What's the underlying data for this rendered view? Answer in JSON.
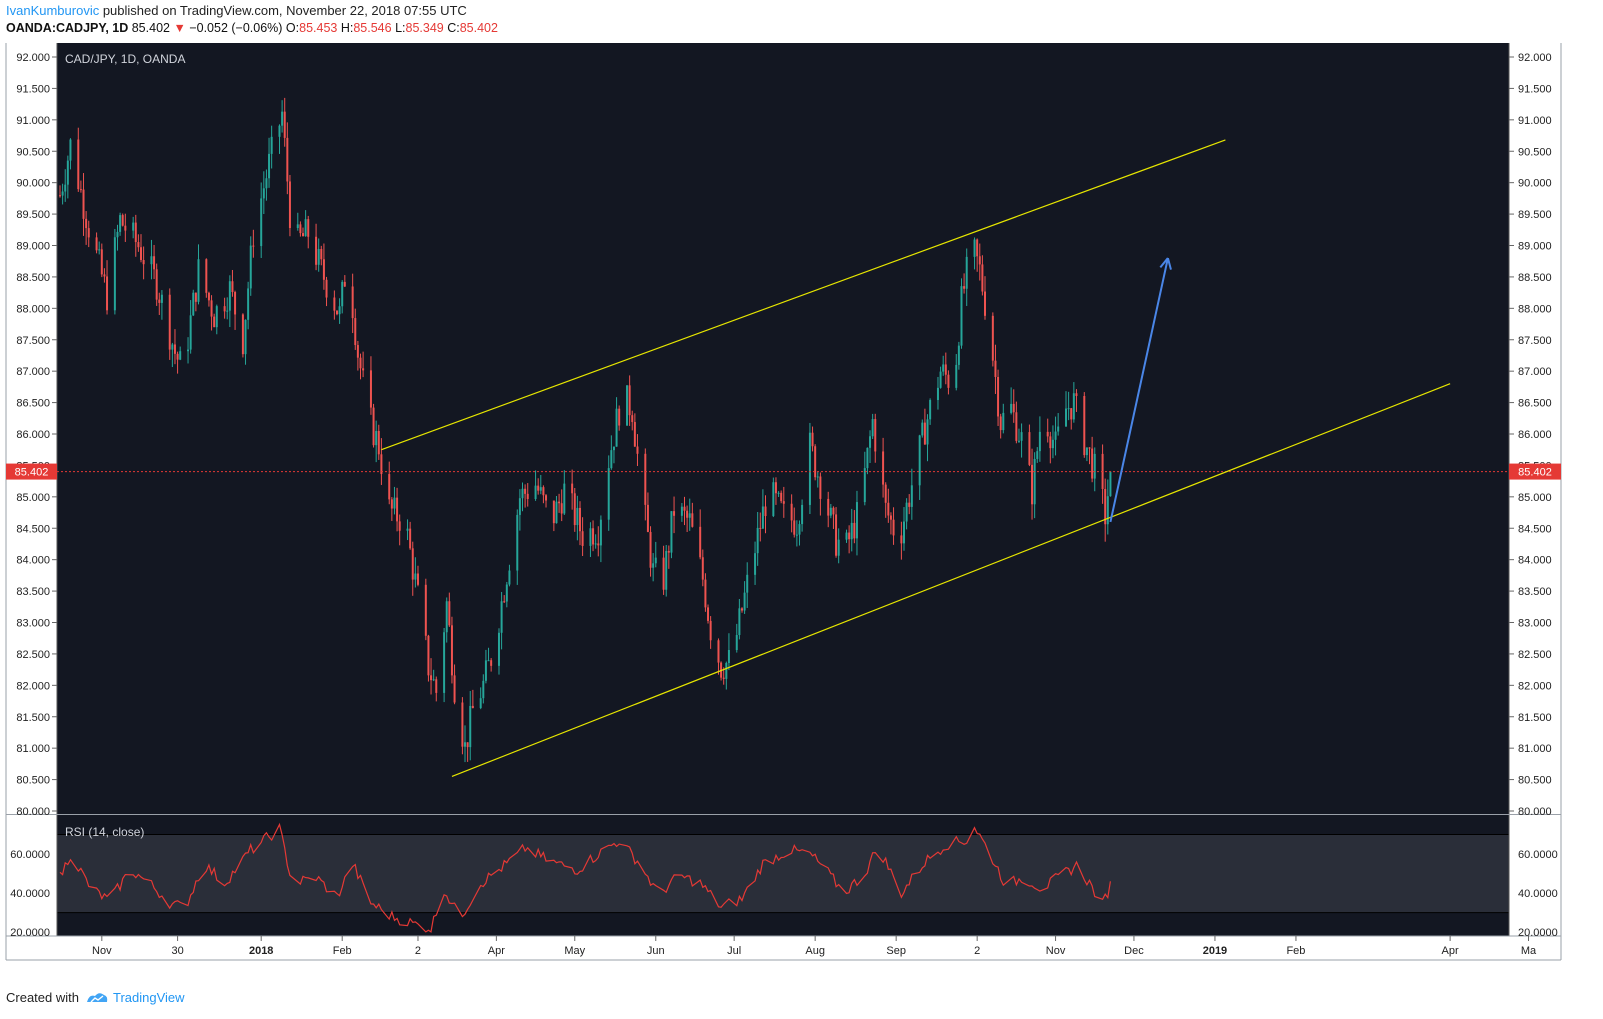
{
  "header": {
    "author": "IvanKumburovic",
    "published": " published on TradingView.com, November 22, 2018 07:55 UTC",
    "symbol": "OANDA:CADJPY, 1D",
    "last": "85.402",
    "change_arrow": "▼",
    "change": "−0.052 (−0.06%)",
    "o_label": "O:",
    "o": "85.453",
    "h_label": "H:",
    "h": "85.546",
    "l_label": "L:",
    "l": "85.349",
    "c_label": "C:",
    "c": "85.402"
  },
  "footer": {
    "created_with": "Created with",
    "brand": "TradingView"
  },
  "colors": {
    "background": "#131722",
    "up": "#26a69a",
    "down": "#ef5350",
    "channel": "#e6e600",
    "arrow": "#4a86e8",
    "rsi_line": "#e53935",
    "rsi_band": "#2a2e39",
    "price_line": "#e53935"
  },
  "chart_data": [
    {
      "type": "candlestick",
      "title": "CAD/JPY, 1D, OANDA",
      "y_ticks": [
        "92.000",
        "91.500",
        "91.000",
        "90.500",
        "90.000",
        "89.500",
        "89.000",
        "88.500",
        "88.000",
        "87.500",
        "87.000",
        "86.500",
        "86.000",
        "85.500",
        "85.000",
        "84.500",
        "84.000",
        "83.500",
        "83.000",
        "82.500",
        "82.000",
        "81.500",
        "81.000",
        "80.500",
        "80.000"
      ],
      "ylim": [
        80.0,
        92.0
      ],
      "x_ticks": [
        {
          "label": "Nov",
          "date": "2017-11-01",
          "bold": false
        },
        {
          "label": "30",
          "date": "2017-11-30",
          "bold": false
        },
        {
          "label": "2018",
          "date": "2018-01-01",
          "bold": true
        },
        {
          "label": "Feb",
          "date": "2018-02-01",
          "bold": false
        },
        {
          "label": "2",
          "date": "2018-03-02",
          "bold": false
        },
        {
          "label": "Apr",
          "date": "2018-04-01",
          "bold": false
        },
        {
          "label": "May",
          "date": "2018-05-01",
          "bold": false
        },
        {
          "label": "Jun",
          "date": "2018-06-01",
          "bold": false
        },
        {
          "label": "Jul",
          "date": "2018-07-01",
          "bold": false
        },
        {
          "label": "Aug",
          "date": "2018-08-01",
          "bold": false
        },
        {
          "label": "Sep",
          "date": "2018-09-01",
          "bold": false
        },
        {
          "label": "2",
          "date": "2018-10-02",
          "bold": false
        },
        {
          "label": "Nov",
          "date": "2018-11-01",
          "bold": false
        },
        {
          "label": "Dec",
          "date": "2018-12-01",
          "bold": false
        },
        {
          "label": "2019",
          "date": "2019-01-01",
          "bold": true
        },
        {
          "label": "Feb",
          "date": "2019-02-01",
          "bold": false
        },
        {
          "label": "Apr",
          "date": "2019-04-01",
          "bold": false
        },
        {
          "label": "Ma",
          "date": "2019-05-01",
          "bold": false
        }
      ],
      "current_price": 85.402,
      "current_price_label": "85.402",
      "anchors": [
        {
          "date": "2017-10-16",
          "close": 89.8
        },
        {
          "date": "2017-10-20",
          "close": 90.6
        },
        {
          "date": "2017-10-27",
          "close": 89.3
        },
        {
          "date": "2017-11-03",
          "close": 88.2
        },
        {
          "date": "2017-11-08",
          "close": 89.4
        },
        {
          "date": "2017-11-15",
          "close": 89.0
        },
        {
          "date": "2017-11-22",
          "close": 88.4
        },
        {
          "date": "2017-11-29",
          "close": 87.3
        },
        {
          "date": "2017-12-02",
          "close": 87.0
        },
        {
          "date": "2017-12-08",
          "close": 88.6
        },
        {
          "date": "2017-12-14",
          "close": 87.9
        },
        {
          "date": "2017-12-20",
          "close": 88.3
        },
        {
          "date": "2017-12-25",
          "close": 87.5
        },
        {
          "date": "2017-12-29",
          "close": 89.2
        },
        {
          "date": "2018-01-04",
          "close": 90.3
        },
        {
          "date": "2018-01-09",
          "close": 91.1
        },
        {
          "date": "2018-01-13",
          "close": 89.0
        },
        {
          "date": "2018-01-19",
          "close": 89.2
        },
        {
          "date": "2018-01-24",
          "close": 88.6
        },
        {
          "date": "2018-01-31",
          "close": 87.9
        },
        {
          "date": "2018-02-03",
          "close": 88.8
        },
        {
          "date": "2018-02-07",
          "close": 87.3
        },
        {
          "date": "2018-02-11",
          "close": 86.3
        },
        {
          "date": "2018-02-15",
          "close": 85.8
        },
        {
          "date": "2018-02-19",
          "close": 84.8
        },
        {
          "date": "2018-02-25",
          "close": 84.6
        },
        {
          "date": "2018-03-02",
          "close": 83.4
        },
        {
          "date": "2018-03-06",
          "close": 82.3
        },
        {
          "date": "2018-03-09",
          "close": 81.9
        },
        {
          "date": "2018-03-13",
          "close": 83.3
        },
        {
          "date": "2018-03-16",
          "close": 82.0
        },
        {
          "date": "2018-03-20",
          "close": 81.0
        },
        {
          "date": "2018-03-23",
          "close": 81.6
        },
        {
          "date": "2018-03-27",
          "close": 82.0
        },
        {
          "date": "2018-03-31",
          "close": 82.6
        },
        {
          "date": "2018-04-05",
          "close": 83.8
        },
        {
          "date": "2018-04-10",
          "close": 85.0
        },
        {
          "date": "2018-04-16",
          "close": 85.2
        },
        {
          "date": "2018-04-22",
          "close": 84.6
        },
        {
          "date": "2018-04-27",
          "close": 85.1
        },
        {
          "date": "2018-05-04",
          "close": 84.4
        },
        {
          "date": "2018-05-10",
          "close": 84.5
        },
        {
          "date": "2018-05-14",
          "close": 85.6
        },
        {
          "date": "2018-05-19",
          "close": 86.6
        },
        {
          "date": "2018-05-23",
          "close": 86.4
        },
        {
          "date": "2018-05-27",
          "close": 84.9
        },
        {
          "date": "2018-05-31",
          "close": 83.8
        },
        {
          "date": "2018-06-04",
          "close": 83.7
        },
        {
          "date": "2018-06-08",
          "close": 84.8
        },
        {
          "date": "2018-06-14",
          "close": 84.6
        },
        {
          "date": "2018-06-19",
          "close": 83.7
        },
        {
          "date": "2018-06-22",
          "close": 82.9
        },
        {
          "date": "2018-06-26",
          "close": 82.3
        },
        {
          "date": "2018-06-30",
          "close": 82.4
        },
        {
          "date": "2018-07-04",
          "close": 83.2
        },
        {
          "date": "2018-07-08",
          "close": 84.0
        },
        {
          "date": "2018-07-14",
          "close": 85.1
        },
        {
          "date": "2018-07-20",
          "close": 84.7
        },
        {
          "date": "2018-07-25",
          "close": 84.6
        },
        {
          "date": "2018-07-30",
          "close": 85.8
        },
        {
          "date": "2018-08-04",
          "close": 85.1
        },
        {
          "date": "2018-08-09",
          "close": 84.3
        },
        {
          "date": "2018-08-13",
          "close": 84.2
        },
        {
          "date": "2018-08-18",
          "close": 84.8
        },
        {
          "date": "2018-08-23",
          "close": 86.2
        },
        {
          "date": "2018-08-28",
          "close": 84.8
        },
        {
          "date": "2018-09-02",
          "close": 84.3
        },
        {
          "date": "2018-09-07",
          "close": 85.2
        },
        {
          "date": "2018-09-12",
          "close": 86.1
        },
        {
          "date": "2018-09-18",
          "close": 87.0
        },
        {
          "date": "2018-09-23",
          "close": 86.8
        },
        {
          "date": "2018-09-26",
          "close": 88.1
        },
        {
          "date": "2018-09-30",
          "close": 89.0
        },
        {
          "date": "2018-10-03",
          "close": 88.6
        },
        {
          "date": "2018-10-07",
          "close": 87.6
        },
        {
          "date": "2018-10-11",
          "close": 86.2
        },
        {
          "date": "2018-10-15",
          "close": 86.4
        },
        {
          "date": "2018-10-19",
          "close": 85.9
        },
        {
          "date": "2018-10-23",
          "close": 85.1
        },
        {
          "date": "2018-10-27",
          "close": 86.4
        },
        {
          "date": "2018-11-01",
          "close": 85.8
        },
        {
          "date": "2018-11-05",
          "close": 86.4
        },
        {
          "date": "2018-11-08",
          "close": 86.5
        },
        {
          "date": "2018-11-12",
          "close": 85.9
        },
        {
          "date": "2018-11-17",
          "close": 85.3
        },
        {
          "date": "2018-11-20",
          "close": 84.7
        },
        {
          "date": "2018-11-22",
          "close": 85.4
        }
      ]
    },
    {
      "type": "line",
      "title": "RSI (14, close)",
      "y_ticks": [
        "60.0000",
        "40.0000",
        "20.0000"
      ],
      "ylim": [
        18.0,
        80.0
      ],
      "band": [
        30,
        70
      ],
      "anchors": [
        {
          "date": "2017-10-16",
          "value": 48
        },
        {
          "date": "2017-10-20",
          "value": 60
        },
        {
          "date": "2017-10-28",
          "value": 42
        },
        {
          "date": "2017-11-04",
          "value": 36
        },
        {
          "date": "2017-11-12",
          "value": 52
        },
        {
          "date": "2017-11-20",
          "value": 44
        },
        {
          "date": "2017-11-28",
          "value": 34
        },
        {
          "date": "2017-12-03",
          "value": 33
        },
        {
          "date": "2017-12-10",
          "value": 55
        },
        {
          "date": "2017-12-18",
          "value": 45
        },
        {
          "date": "2017-12-28",
          "value": 62
        },
        {
          "date": "2018-01-08",
          "value": 73
        },
        {
          "date": "2018-01-13",
          "value": 45
        },
        {
          "date": "2018-01-22",
          "value": 48
        },
        {
          "date": "2018-01-30",
          "value": 38
        },
        {
          "date": "2018-02-05",
          "value": 55
        },
        {
          "date": "2018-02-12",
          "value": 35
        },
        {
          "date": "2018-02-20",
          "value": 28
        },
        {
          "date": "2018-03-01",
          "value": 24
        },
        {
          "date": "2018-03-07",
          "value": 22
        },
        {
          "date": "2018-03-12",
          "value": 42
        },
        {
          "date": "2018-03-18",
          "value": 27
        },
        {
          "date": "2018-03-26",
          "value": 45
        },
        {
          "date": "2018-04-05",
          "value": 55
        },
        {
          "date": "2018-04-12",
          "value": 63
        },
        {
          "date": "2018-04-22",
          "value": 56
        },
        {
          "date": "2018-05-02",
          "value": 52
        },
        {
          "date": "2018-05-10",
          "value": 60
        },
        {
          "date": "2018-05-18",
          "value": 67
        },
        {
          "date": "2018-05-26",
          "value": 55
        },
        {
          "date": "2018-06-02",
          "value": 39
        },
        {
          "date": "2018-06-10",
          "value": 49
        },
        {
          "date": "2018-06-18",
          "value": 45
        },
        {
          "date": "2018-06-26",
          "value": 33
        },
        {
          "date": "2018-07-04",
          "value": 37
        },
        {
          "date": "2018-07-12",
          "value": 55
        },
        {
          "date": "2018-07-22",
          "value": 62
        },
        {
          "date": "2018-07-30",
          "value": 60
        },
        {
          "date": "2018-08-05",
          "value": 52
        },
        {
          "date": "2018-08-12",
          "value": 40
        },
        {
          "date": "2018-08-20",
          "value": 50
        },
        {
          "date": "2018-08-25",
          "value": 64
        },
        {
          "date": "2018-09-03",
          "value": 40
        },
        {
          "date": "2018-09-12",
          "value": 56
        },
        {
          "date": "2018-09-20",
          "value": 65
        },
        {
          "date": "2018-09-28",
          "value": 67
        },
        {
          "date": "2018-10-01",
          "value": 74
        },
        {
          "date": "2018-10-07",
          "value": 60
        },
        {
          "date": "2018-10-13",
          "value": 44
        },
        {
          "date": "2018-10-20",
          "value": 48
        },
        {
          "date": "2018-10-27",
          "value": 42
        },
        {
          "date": "2018-11-02",
          "value": 48
        },
        {
          "date": "2018-11-09",
          "value": 54
        },
        {
          "date": "2018-11-14",
          "value": 45
        },
        {
          "date": "2018-11-19",
          "value": 34
        },
        {
          "date": "2018-11-22",
          "value": 44
        }
      ]
    }
  ],
  "drawings": {
    "channel_upper": [
      {
        "date": "2018-02-16",
        "price": 85.75
      },
      {
        "date": "2019-01-05",
        "price": 90.68
      }
    ],
    "channel_lower": [
      {
        "date": "2018-03-15",
        "price": 80.55
      },
      {
        "date": "2019-04-01",
        "price": 86.8
      }
    ],
    "arrow": [
      {
        "date": "2018-11-22",
        "price": 84.6
      },
      {
        "date": "2018-12-14",
        "price": 88.8
      }
    ]
  }
}
